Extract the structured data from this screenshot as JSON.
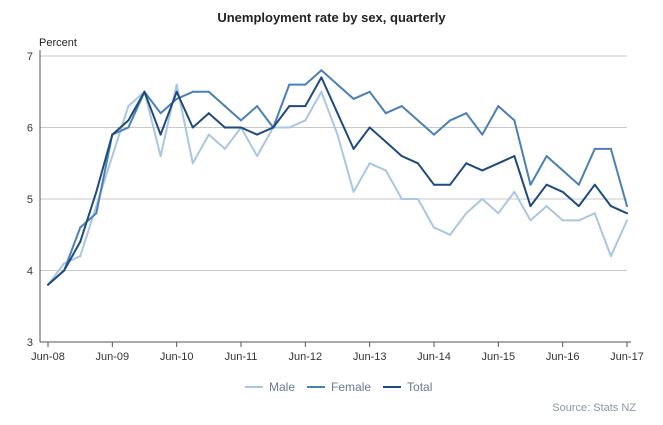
{
  "chart_data": {
    "type": "line",
    "title": "Unemployment rate by sex, quarterly",
    "ylabel": "Percent",
    "ylim": [
      3,
      7
    ],
    "yticks": [
      3,
      4,
      5,
      6,
      7
    ],
    "grid": true,
    "x_tick_labels": [
      "Jun-08",
      "Jun-09",
      "Jun-10",
      "Jun-11",
      "Jun-12",
      "Jun-13",
      "Jun-14",
      "Jun-15",
      "Jun-16",
      "Jun-17"
    ],
    "x": [
      "Jun-08",
      "Sep-08",
      "Dec-08",
      "Mar-09",
      "Jun-09",
      "Sep-09",
      "Dec-09",
      "Mar-10",
      "Jun-10",
      "Sep-10",
      "Dec-10",
      "Mar-11",
      "Jun-11",
      "Sep-11",
      "Dec-11",
      "Mar-12",
      "Jun-12",
      "Sep-12",
      "Dec-12",
      "Mar-13",
      "Jun-13",
      "Sep-13",
      "Dec-13",
      "Mar-14",
      "Jun-14",
      "Sep-14",
      "Dec-14",
      "Mar-15",
      "Jun-15",
      "Sep-15",
      "Dec-15",
      "Mar-16",
      "Jun-16",
      "Sep-16",
      "Dec-16",
      "Mar-17",
      "Jun-17"
    ],
    "series": [
      {
        "name": "Male",
        "color": "#a9c6e3",
        "values": [
          3.8,
          4.1,
          4.2,
          4.9,
          5.6,
          6.3,
          6.5,
          5.6,
          6.6,
          5.5,
          5.9,
          5.7,
          6.0,
          5.6,
          6.0,
          6.0,
          6.1,
          6.5,
          5.9,
          5.1,
          5.5,
          5.4,
          5.0,
          5.0,
          4.6,
          4.5,
          4.8,
          5.0,
          4.8,
          5.1,
          4.7,
          4.9,
          4.7,
          4.7,
          4.8,
          4.2,
          4.7
        ]
      },
      {
        "name": "Female",
        "color": "#4a7fb8",
        "values": [
          3.8,
          4.0,
          4.6,
          4.8,
          5.9,
          6.0,
          6.5,
          6.2,
          6.4,
          6.5,
          6.5,
          6.3,
          6.1,
          6.3,
          6.0,
          6.6,
          6.6,
          6.8,
          6.6,
          6.4,
          6.5,
          6.2,
          6.3,
          6.1,
          5.9,
          6.1,
          6.2,
          5.9,
          6.3,
          6.1,
          5.2,
          5.6,
          5.4,
          5.2,
          5.7,
          5.7,
          4.9
        ]
      },
      {
        "name": "Total",
        "color": "#1f4a7c",
        "values": [
          3.8,
          4.0,
          4.4,
          5.1,
          5.9,
          6.1,
          6.5,
          5.9,
          6.5,
          6.0,
          6.2,
          6.0,
          6.0,
          5.9,
          6.0,
          6.3,
          6.3,
          6.7,
          6.2,
          5.7,
          6.0,
          5.8,
          5.6,
          5.5,
          5.2,
          5.2,
          5.5,
          5.4,
          5.5,
          5.6,
          4.9,
          5.2,
          5.1,
          4.9,
          5.2,
          4.9,
          4.8
        ]
      }
    ],
    "legend_position": "bottom-center",
    "source_note": "Source: Stats NZ"
  }
}
